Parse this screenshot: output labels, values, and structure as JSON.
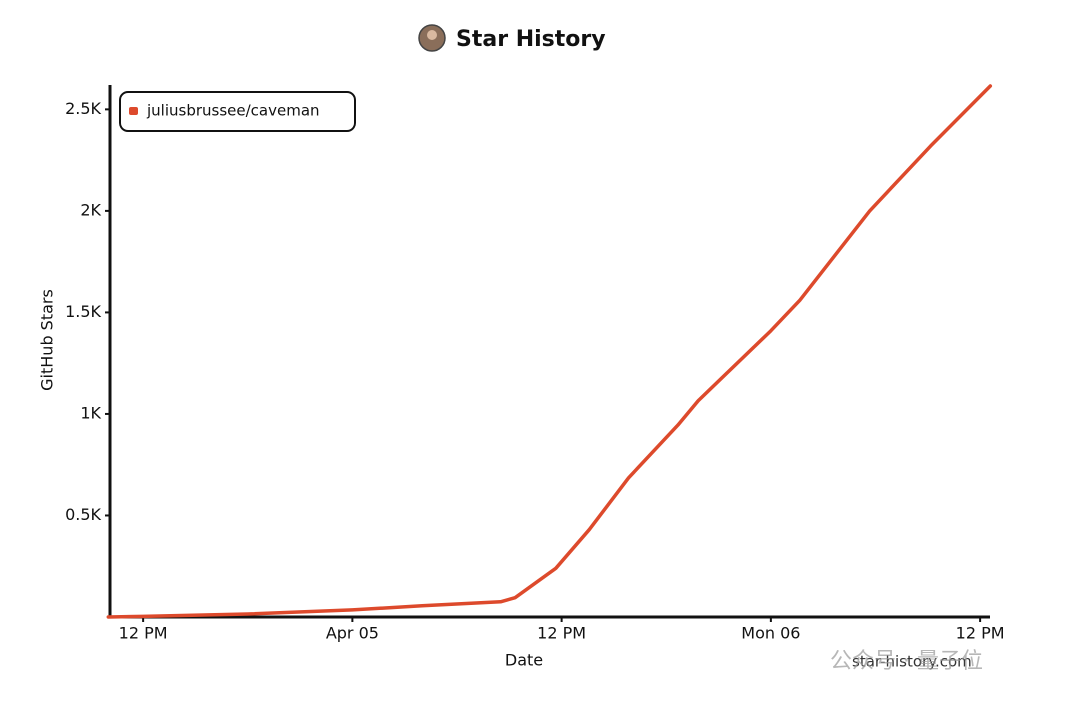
{
  "chart_data": {
    "type": "line",
    "title": "Star History",
    "xlabel": "Date",
    "ylabel": "GitHub Stars",
    "watermark": "star-history.com",
    "wechat_watermark": "公众号 · 量子位",
    "legend": "top-left",
    "x": [
      "Apr 04 10:00",
      "Apr 04 12:00",
      "Apr 04 18:00",
      "Apr 05 00:00",
      "Apr 05 04:00",
      "Apr 05 06:15",
      "Apr 05 08:30",
      "Apr 05 09:20",
      "Apr 05 11:40",
      "Apr 05 13:35",
      "Apr 05 15:00",
      "Apr 05 15:50",
      "Apr 05 18:40",
      "Apr 05 19:50",
      "Apr 06 00:00",
      "Apr 06 01:40",
      "Apr 06 05:40",
      "Apr 06 09:10",
      "Apr 06 12:35"
    ],
    "series": [
      {
        "name": "juliusbrussee/caveman",
        "color": "#dd4a2c",
        "values": [
          0,
          3,
          15,
          35,
          55,
          65,
          75,
          95,
          240,
          430,
          590,
          685,
          945,
          1065,
          1410,
          1560,
          2000,
          2320,
          2615
        ]
      }
    ],
    "xlim": [
      "Apr 04 10:06",
      "Apr 06 12:34"
    ],
    "xticks": [
      {
        "value": "Apr 04 12:00",
        "label": "12 PM"
      },
      {
        "value": "Apr 05 00:00",
        "label": "Apr 05"
      },
      {
        "value": "Apr 05 12:00",
        "label": "12 PM"
      },
      {
        "value": "Apr 06 00:00",
        "label": "Mon 06"
      },
      {
        "value": "Apr 06 12:00",
        "label": "12 PM"
      }
    ],
    "ylim": [
      0,
      2620
    ],
    "yticks": [
      {
        "value": 500,
        "label": "0.5K"
      },
      {
        "value": 1000,
        "label": "1K"
      },
      {
        "value": 1500,
        "label": "1.5K"
      },
      {
        "value": 2000,
        "label": "2K"
      },
      {
        "value": 2500,
        "label": "2.5K"
      }
    ]
  }
}
